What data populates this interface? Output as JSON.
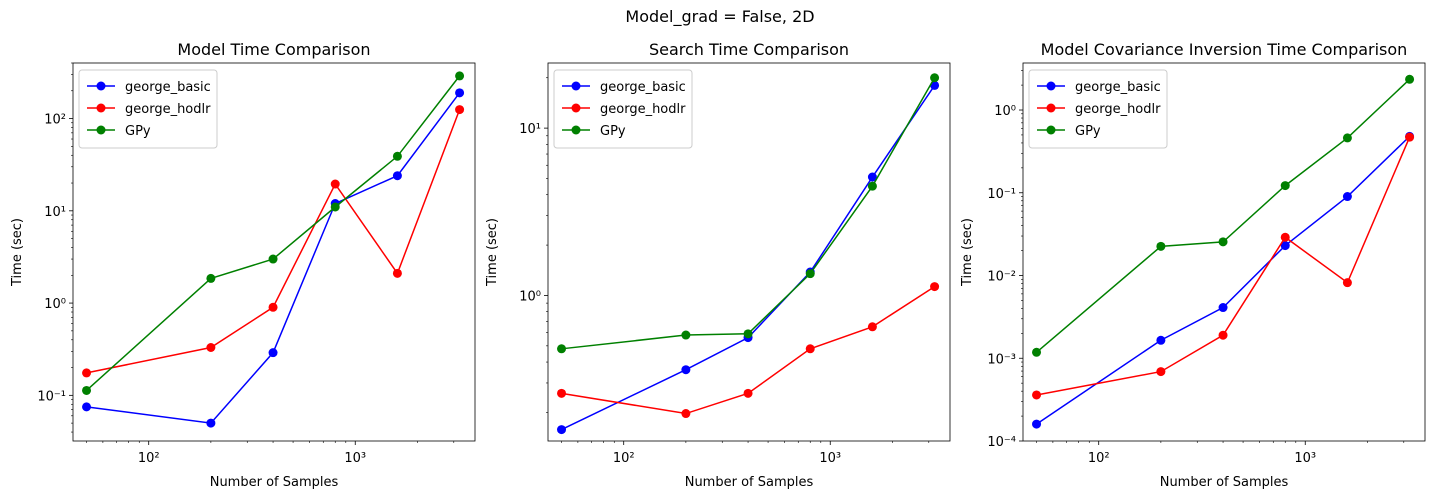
{
  "figure": {
    "suptitle": "Model_grad = False, 2D"
  },
  "colors": {
    "george_basic": "#0000ff",
    "george_hodlr": "#ff0000",
    "GPy": "#008000"
  },
  "chart_data": [
    {
      "type": "line",
      "title": "Model Time Comparison",
      "xlabel": "Number of Samples",
      "ylabel": "Time (sec)",
      "xscale": "log",
      "yscale": "log",
      "xlim": [
        43,
        3800
      ],
      "ylim": [
        0.032,
        400
      ],
      "xticks": [
        100,
        1000
      ],
      "xtick_labels": [
        "10²",
        "10³"
      ],
      "yticks": [
        0.1,
        1,
        10,
        100
      ],
      "ytick_labels": [
        "10⁻¹",
        "10⁰",
        "10¹",
        "10²"
      ],
      "legend_position": "top-left",
      "x": [
        50,
        200,
        400,
        800,
        1600,
        3200
      ],
      "series": [
        {
          "name": "george_basic",
          "color": "#0000ff",
          "values": [
            0.075,
            0.05,
            0.29,
            12.0,
            24.0,
            190.0
          ]
        },
        {
          "name": "george_hodlr",
          "color": "#ff0000",
          "values": [
            0.175,
            0.33,
            0.9,
            19.5,
            2.1,
            125.0
          ]
        },
        {
          "name": "GPy",
          "color": "#008000",
          "values": [
            0.113,
            1.85,
            3.0,
            11.0,
            39.0,
            290.0
          ]
        }
      ]
    },
    {
      "type": "line",
      "title": "Search Time Comparison",
      "xlabel": "Number of Samples",
      "ylabel": "Time (sec)",
      "xscale": "log",
      "yscale": "log",
      "xlim": [
        43,
        3800
      ],
      "ylim": [
        0.135,
        24.5
      ],
      "xticks": [
        100,
        1000
      ],
      "xtick_labels": [
        "10²",
        "10³"
      ],
      "yticks": [
        1,
        10
      ],
      "ytick_labels": [
        "10⁰",
        "10¹"
      ],
      "legend_position": "top-left",
      "x": [
        50,
        200,
        400,
        800,
        1600,
        3200
      ],
      "series": [
        {
          "name": "george_basic",
          "color": "#0000ff",
          "values": [
            0.158,
            0.36,
            0.56,
            1.38,
            5.1,
            18.0
          ]
        },
        {
          "name": "george_hodlr",
          "color": "#ff0000",
          "values": [
            0.26,
            0.197,
            0.26,
            0.48,
            0.65,
            1.13
          ]
        },
        {
          "name": "GPy",
          "color": "#008000",
          "values": [
            0.48,
            0.58,
            0.59,
            1.35,
            4.5,
            20.0
          ]
        }
      ]
    },
    {
      "type": "line",
      "title": "Model Covariance Inversion Time Comparison",
      "xlabel": "Number of Samples",
      "ylabel": "Time (sec)",
      "xscale": "log",
      "yscale": "log",
      "xlim": [
        43,
        3800
      ],
      "ylim": [
        0.0001,
        3.7
      ],
      "xticks": [
        100,
        1000
      ],
      "xtick_labels": [
        "10²",
        "10³"
      ],
      "yticks": [
        0.0001,
        0.001,
        0.01,
        0.1,
        1
      ],
      "ytick_labels": [
        "10⁻⁴",
        "10⁻³",
        "10⁻²",
        "10⁻¹",
        "10⁰"
      ],
      "legend_position": "top-left",
      "x": [
        50,
        200,
        400,
        800,
        1600,
        3200
      ],
      "series": [
        {
          "name": "george_basic",
          "color": "#0000ff",
          "values": [
            0.00016,
            0.00165,
            0.0041,
            0.023,
            0.09,
            0.48
          ]
        },
        {
          "name": "george_hodlr",
          "color": "#ff0000",
          "values": [
            0.00036,
            0.00069,
            0.0019,
            0.029,
            0.0082,
            0.47
          ]
        },
        {
          "name": "GPy",
          "color": "#008000",
          "values": [
            0.00118,
            0.0225,
            0.0255,
            0.122,
            0.46,
            2.35
          ]
        }
      ]
    }
  ]
}
